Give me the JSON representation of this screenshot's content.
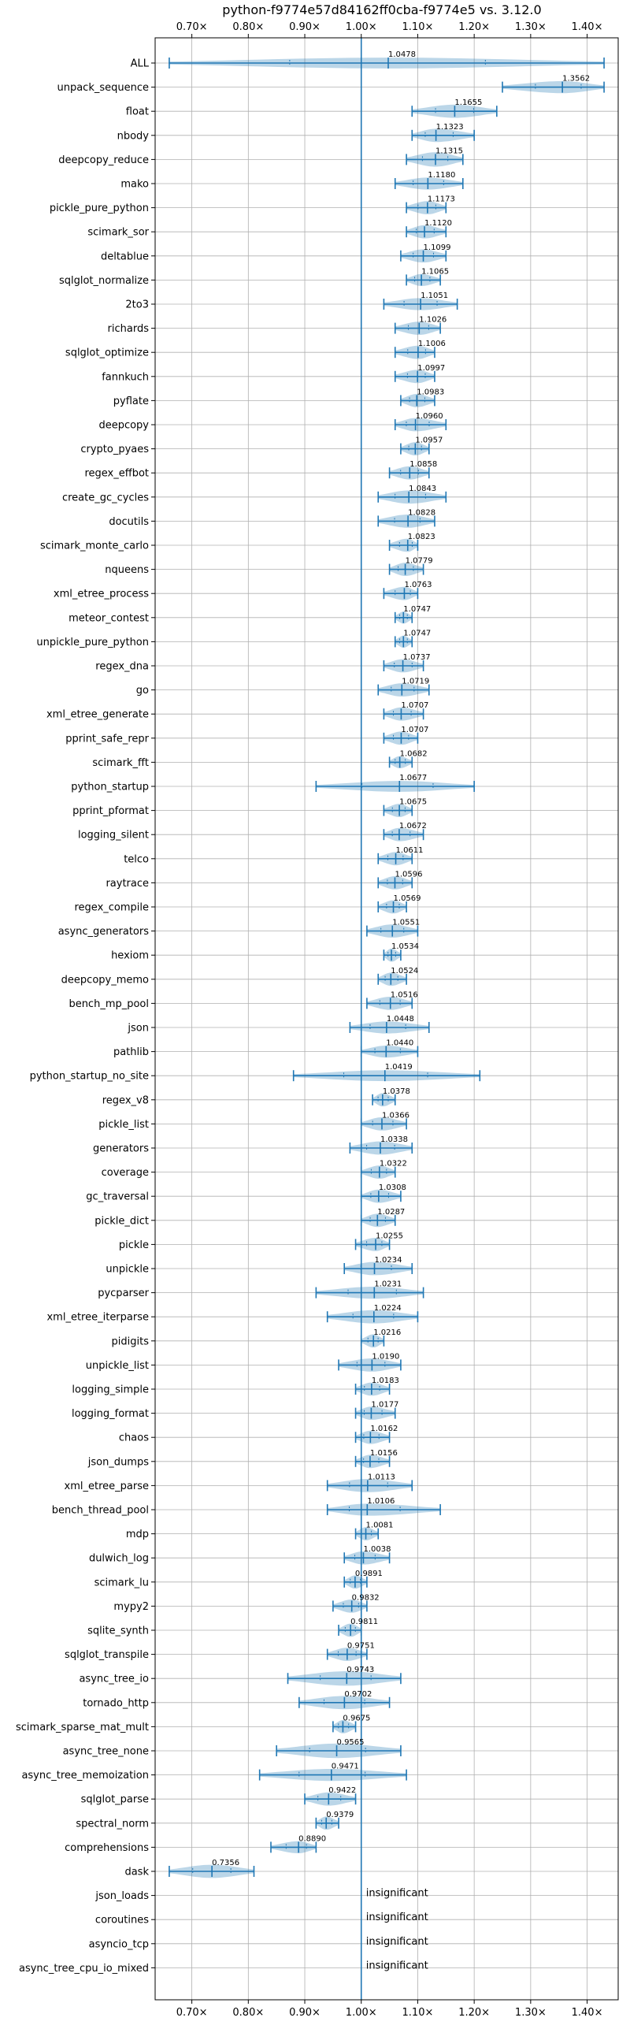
{
  "chart_data": {
    "type": "violin",
    "title": "python-f9774e57d84162ff0cba-f9774e5 vs. 3.12.0",
    "xlim": [
      0.635,
      1.455
    ],
    "x_ticks": [
      0.7,
      0.8,
      0.9,
      1.0,
      1.1,
      1.2,
      1.3,
      1.4
    ],
    "x_tick_labels": [
      "0.70×",
      "0.80×",
      "0.90×",
      "1.00×",
      "1.10×",
      "1.20×",
      "1.30×",
      "1.40×"
    ],
    "reference_line": 1.0,
    "grid": true,
    "insignificant_text": "insignificant",
    "benchmarks": [
      {
        "name": "ALL",
        "mean": 1.0478,
        "label": "1.0478",
        "min": 0.66,
        "max": 1.43,
        "width": 0.45
      },
      {
        "name": "unpack_sequence",
        "mean": 1.3562,
        "label": "1.3562",
        "min": 1.25,
        "max": 1.43,
        "width": 0.5
      },
      {
        "name": "float",
        "mean": 1.1655,
        "label": "1.1655",
        "min": 1.09,
        "max": 1.24,
        "width": 0.55
      },
      {
        "name": "nbody",
        "mean": 1.1323,
        "label": "1.1323",
        "min": 1.09,
        "max": 1.2,
        "width": 0.55
      },
      {
        "name": "deepcopy_reduce",
        "mean": 1.1315,
        "label": "1.1315",
        "min": 1.08,
        "max": 1.18,
        "width": 0.6
      },
      {
        "name": "mako",
        "mean": 1.118,
        "label": "1.1180",
        "min": 1.06,
        "max": 1.18,
        "width": 0.5
      },
      {
        "name": "pickle_pure_python",
        "mean": 1.1173,
        "label": "1.1173",
        "min": 1.08,
        "max": 1.15,
        "width": 0.55
      },
      {
        "name": "scimark_sor",
        "mean": 1.112,
        "label": "1.1120",
        "min": 1.08,
        "max": 1.15,
        "width": 0.55
      },
      {
        "name": "deltablue",
        "mean": 1.1099,
        "label": "1.1099",
        "min": 1.07,
        "max": 1.15,
        "width": 0.55
      },
      {
        "name": "sqlglot_normalize",
        "mean": 1.1065,
        "label": "1.1065",
        "min": 1.08,
        "max": 1.14,
        "width": 0.5
      },
      {
        "name": "2to3",
        "mean": 1.1051,
        "label": "1.1051",
        "min": 1.04,
        "max": 1.17,
        "width": 0.5
      },
      {
        "name": "richards",
        "mean": 1.1026,
        "label": "1.1026",
        "min": 1.06,
        "max": 1.14,
        "width": 0.55
      },
      {
        "name": "sqlglot_optimize",
        "mean": 1.1006,
        "label": "1.1006",
        "min": 1.06,
        "max": 1.13,
        "width": 0.55
      },
      {
        "name": "fannkuch",
        "mean": 1.0997,
        "label": "1.0997",
        "min": 1.06,
        "max": 1.13,
        "width": 0.55
      },
      {
        "name": "pyflate",
        "mean": 1.0983,
        "label": "1.0983",
        "min": 1.07,
        "max": 1.13,
        "width": 0.55
      },
      {
        "name": "deepcopy",
        "mean": 1.096,
        "label": "1.0960",
        "min": 1.06,
        "max": 1.15,
        "width": 0.55
      },
      {
        "name": "crypto_pyaes",
        "mean": 1.0957,
        "label": "1.0957",
        "min": 1.07,
        "max": 1.12,
        "width": 0.55
      },
      {
        "name": "regex_effbot",
        "mean": 1.0858,
        "label": "1.0858",
        "min": 1.05,
        "max": 1.12,
        "width": 0.55
      },
      {
        "name": "create_gc_cycles",
        "mean": 1.0843,
        "label": "1.0843",
        "min": 1.03,
        "max": 1.15,
        "width": 0.55
      },
      {
        "name": "docutils",
        "mean": 1.0828,
        "label": "1.0828",
        "min": 1.03,
        "max": 1.13,
        "width": 0.55
      },
      {
        "name": "scimark_monte_carlo",
        "mean": 1.0823,
        "label": "1.0823",
        "min": 1.05,
        "max": 1.1,
        "width": 0.55
      },
      {
        "name": "nqueens",
        "mean": 1.0779,
        "label": "1.0779",
        "min": 1.05,
        "max": 1.11,
        "width": 0.55
      },
      {
        "name": "xml_etree_process",
        "mean": 1.0763,
        "label": "1.0763",
        "min": 1.04,
        "max": 1.1,
        "width": 0.55
      },
      {
        "name": "meteor_contest",
        "mean": 1.0747,
        "label": "1.0747",
        "min": 1.06,
        "max": 1.09,
        "width": 0.5
      },
      {
        "name": "unpickle_pure_python",
        "mean": 1.0747,
        "label": "1.0747",
        "min": 1.06,
        "max": 1.09,
        "width": 0.5
      },
      {
        "name": "regex_dna",
        "mean": 1.0737,
        "label": "1.0737",
        "min": 1.04,
        "max": 1.11,
        "width": 0.55
      },
      {
        "name": "go",
        "mean": 1.0719,
        "label": "1.0719",
        "min": 1.03,
        "max": 1.12,
        "width": 0.55
      },
      {
        "name": "xml_etree_generate",
        "mean": 1.0707,
        "label": "1.0707",
        "min": 1.04,
        "max": 1.11,
        "width": 0.55
      },
      {
        "name": "pprint_safe_repr",
        "mean": 1.0707,
        "label": "1.0707",
        "min": 1.04,
        "max": 1.1,
        "width": 0.55
      },
      {
        "name": "scimark_fft",
        "mean": 1.0682,
        "label": "1.0682",
        "min": 1.05,
        "max": 1.09,
        "width": 0.5
      },
      {
        "name": "python_startup",
        "mean": 1.0677,
        "label": "1.0677",
        "min": 0.92,
        "max": 1.2,
        "width": 0.45
      },
      {
        "name": "pprint_pformat",
        "mean": 1.0675,
        "label": "1.0675",
        "min": 1.04,
        "max": 1.09,
        "width": 0.55
      },
      {
        "name": "logging_silent",
        "mean": 1.0672,
        "label": "1.0672",
        "min": 1.04,
        "max": 1.11,
        "width": 0.55
      },
      {
        "name": "telco",
        "mean": 1.0611,
        "label": "1.0611",
        "min": 1.03,
        "max": 1.09,
        "width": 0.55
      },
      {
        "name": "raytrace",
        "mean": 1.0596,
        "label": "1.0596",
        "min": 1.03,
        "max": 1.09,
        "width": 0.55
      },
      {
        "name": "regex_compile",
        "mean": 1.0569,
        "label": "1.0569",
        "min": 1.03,
        "max": 1.08,
        "width": 0.55
      },
      {
        "name": "async_generators",
        "mean": 1.0551,
        "label": "1.0551",
        "min": 1.01,
        "max": 1.1,
        "width": 0.55
      },
      {
        "name": "hexiom",
        "mean": 1.0534,
        "label": "1.0534",
        "min": 1.04,
        "max": 1.07,
        "width": 0.55
      },
      {
        "name": "deepcopy_memo",
        "mean": 1.0524,
        "label": "1.0524",
        "min": 1.03,
        "max": 1.08,
        "width": 0.55
      },
      {
        "name": "bench_mp_pool",
        "mean": 1.0516,
        "label": "1.0516",
        "min": 1.01,
        "max": 1.09,
        "width": 0.55
      },
      {
        "name": "json",
        "mean": 1.0448,
        "label": "1.0448",
        "min": 0.98,
        "max": 1.12,
        "width": 0.5
      },
      {
        "name": "pathlib",
        "mean": 1.044,
        "label": "1.0440",
        "min": 1.0,
        "max": 1.1,
        "width": 0.5
      },
      {
        "name": "python_startup_no_site",
        "mean": 1.0419,
        "label": "1.0419",
        "min": 0.88,
        "max": 1.21,
        "width": 0.45
      },
      {
        "name": "regex_v8",
        "mean": 1.0378,
        "label": "1.0378",
        "min": 1.02,
        "max": 1.06,
        "width": 0.55
      },
      {
        "name": "pickle_list",
        "mean": 1.0366,
        "label": "1.0366",
        "min": 1.0,
        "max": 1.08,
        "width": 0.55
      },
      {
        "name": "generators",
        "mean": 1.0338,
        "label": "1.0338",
        "min": 0.98,
        "max": 1.09,
        "width": 0.55
      },
      {
        "name": "coverage",
        "mean": 1.0322,
        "label": "1.0322",
        "min": 1.0,
        "max": 1.06,
        "width": 0.55
      },
      {
        "name": "gc_traversal",
        "mean": 1.0308,
        "label": "1.0308",
        "min": 1.0,
        "max": 1.07,
        "width": 0.55
      },
      {
        "name": "pickle_dict",
        "mean": 1.0287,
        "label": "1.0287",
        "min": 1.0,
        "max": 1.06,
        "width": 0.55
      },
      {
        "name": "pickle",
        "mean": 1.0255,
        "label": "1.0255",
        "min": 0.99,
        "max": 1.05,
        "width": 0.55
      },
      {
        "name": "unpickle",
        "mean": 1.0234,
        "label": "1.0234",
        "min": 0.97,
        "max": 1.09,
        "width": 0.55
      },
      {
        "name": "pycparser",
        "mean": 1.0231,
        "label": "1.0231",
        "min": 0.92,
        "max": 1.11,
        "width": 0.5
      },
      {
        "name": "xml_etree_iterparse",
        "mean": 1.0224,
        "label": "1.0224",
        "min": 0.94,
        "max": 1.1,
        "width": 0.55
      },
      {
        "name": "pidigits",
        "mean": 1.0216,
        "label": "1.0216",
        "min": 1.0,
        "max": 1.04,
        "width": 0.55
      },
      {
        "name": "unpickle_list",
        "mean": 1.019,
        "label": "1.0190",
        "min": 0.96,
        "max": 1.07,
        "width": 0.55
      },
      {
        "name": "logging_simple",
        "mean": 1.0183,
        "label": "1.0183",
        "min": 0.99,
        "max": 1.05,
        "width": 0.55
      },
      {
        "name": "logging_format",
        "mean": 1.0177,
        "label": "1.0177",
        "min": 0.99,
        "max": 1.06,
        "width": 0.55
      },
      {
        "name": "chaos",
        "mean": 1.0162,
        "label": "1.0162",
        "min": 0.99,
        "max": 1.05,
        "width": 0.55
      },
      {
        "name": "json_dumps",
        "mean": 1.0156,
        "label": "1.0156",
        "min": 0.99,
        "max": 1.05,
        "width": 0.55
      },
      {
        "name": "xml_etree_parse",
        "mean": 1.0113,
        "label": "1.0113",
        "min": 0.94,
        "max": 1.09,
        "width": 0.55
      },
      {
        "name": "bench_thread_pool",
        "mean": 1.0106,
        "label": "1.0106",
        "min": 0.94,
        "max": 1.14,
        "width": 0.5
      },
      {
        "name": "mdp",
        "mean": 1.0081,
        "label": "1.0081",
        "min": 0.99,
        "max": 1.03,
        "width": 0.55
      },
      {
        "name": "dulwich_log",
        "mean": 1.0038,
        "label": "1.0038",
        "min": 0.97,
        "max": 1.05,
        "width": 0.55
      },
      {
        "name": "scimark_lu",
        "mean": 0.9891,
        "label": "0.9891",
        "min": 0.97,
        "max": 1.01,
        "width": 0.55
      },
      {
        "name": "mypy2",
        "mean": 0.9832,
        "label": "0.9832",
        "min": 0.95,
        "max": 1.01,
        "width": 0.55
      },
      {
        "name": "sqlite_synth",
        "mean": 0.9811,
        "label": "0.9811",
        "min": 0.96,
        "max": 1.0,
        "width": 0.55
      },
      {
        "name": "sqlglot_transpile",
        "mean": 0.9751,
        "label": "0.9751",
        "min": 0.94,
        "max": 1.01,
        "width": 0.55
      },
      {
        "name": "async_tree_io",
        "mean": 0.9743,
        "label": "0.9743",
        "min": 0.87,
        "max": 1.07,
        "width": 0.6
      },
      {
        "name": "tornado_http",
        "mean": 0.9702,
        "label": "0.9702",
        "min": 0.89,
        "max": 1.05,
        "width": 0.55
      },
      {
        "name": "scimark_sparse_mat_mult",
        "mean": 0.9675,
        "label": "0.9675",
        "min": 0.95,
        "max": 0.99,
        "width": 0.55
      },
      {
        "name": "async_tree_none",
        "mean": 0.9565,
        "label": "0.9565",
        "min": 0.85,
        "max": 1.07,
        "width": 0.6
      },
      {
        "name": "async_tree_memoization",
        "mean": 0.9471,
        "label": "0.9471",
        "min": 0.82,
        "max": 1.08,
        "width": 0.5
      },
      {
        "name": "sqlglot_parse",
        "mean": 0.9422,
        "label": "0.9422",
        "min": 0.9,
        "max": 0.99,
        "width": 0.55
      },
      {
        "name": "spectral_norm",
        "mean": 0.9379,
        "label": "0.9379",
        "min": 0.92,
        "max": 0.96,
        "width": 0.55
      },
      {
        "name": "comprehensions",
        "mean": 0.889,
        "label": "0.8890",
        "min": 0.84,
        "max": 0.92,
        "width": 0.5
      },
      {
        "name": "dask",
        "mean": 0.7356,
        "label": "0.7356",
        "min": 0.66,
        "max": 0.81,
        "width": 0.55
      },
      {
        "name": "json_loads",
        "insignificant": true
      },
      {
        "name": "coroutines",
        "insignificant": true
      },
      {
        "name": "asyncio_tcp",
        "insignificant": true
      },
      {
        "name": "async_tree_cpu_io_mixed",
        "insignificant": true
      }
    ]
  }
}
